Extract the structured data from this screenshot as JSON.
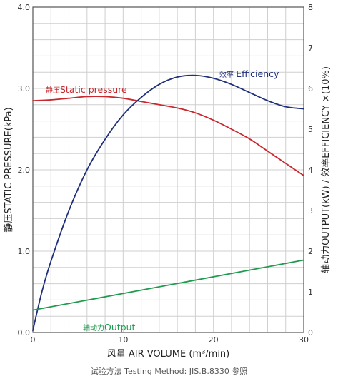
{
  "chart_data": {
    "type": "line",
    "x_axis": {
      "label": "风量 AIR VOLUME (m³/min)",
      "range": [
        0,
        30
      ],
      "ticks": [
        0,
        10,
        20,
        30
      ],
      "minor_step": 2
    },
    "y_axis_left": {
      "label": "静压STATIC PRESSURE(kPa)",
      "range": [
        0,
        4
      ],
      "ticks": [
        "0.0",
        "1.0",
        "2.0",
        "3.0",
        "4.0"
      ],
      "minor_step": 0.2
    },
    "y_axis_right": {
      "label": "轴动力OUTPUT(kW) / 效率EFFICIENCY ×(10%)",
      "range": [
        0,
        8
      ],
      "ticks": [
        "0",
        "1",
        "2",
        "3",
        "4",
        "5",
        "6",
        "7",
        "8"
      ]
    },
    "grid": true,
    "series": [
      {
        "name": "静压Static pressure",
        "label_prefix": "静压",
        "label_main": "Static pressure",
        "axis": "left",
        "color": "#c8282e",
        "x": [
          0,
          2,
          4,
          6,
          8,
          10,
          12,
          14,
          16,
          18,
          20,
          22,
          24,
          26,
          28,
          30
        ],
        "y": [
          2.85,
          2.86,
          2.88,
          2.9,
          2.9,
          2.88,
          2.84,
          2.8,
          2.76,
          2.7,
          2.61,
          2.5,
          2.38,
          2.23,
          2.08,
          1.93
        ]
      },
      {
        "name": "效率 Efficiency",
        "label_prefix": "效率 ",
        "label_main": "Efficiency",
        "axis": "right",
        "color": "#1f2f7a",
        "x": [
          0,
          1,
          2,
          4,
          6,
          8,
          10,
          12,
          14,
          16,
          18,
          20,
          22,
          24,
          26,
          28,
          30
        ],
        "y": [
          0.05,
          1.0,
          1.75,
          3.0,
          4.0,
          4.75,
          5.35,
          5.78,
          6.1,
          6.28,
          6.32,
          6.25,
          6.1,
          5.9,
          5.7,
          5.55,
          5.5
        ]
      },
      {
        "name": "轴动力Output",
        "label_prefix": "轴动力",
        "label_main": "Output",
        "axis": "right",
        "color": "#1f9a4e",
        "x": [
          0,
          30
        ],
        "y": [
          0.55,
          1.78
        ]
      }
    ],
    "footnote": "试验方法 Testing Method: JIS.B.8330 参照"
  }
}
